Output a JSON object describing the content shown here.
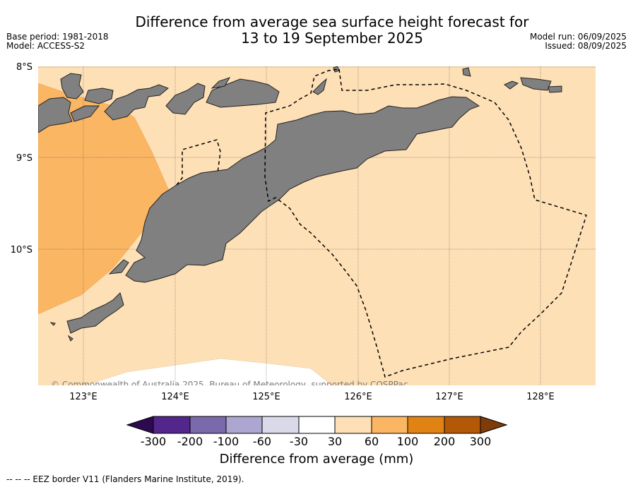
{
  "header": {
    "title_line1": "Difference from average sea surface height forecast for",
    "title_line2": "13 to 19 September 2025",
    "base_period": "Base period: 1981-2018",
    "model": "Model: ACCESS-S2",
    "model_run": "Model run: 06/09/2025",
    "issued": "Issued: 08/09/2025"
  },
  "map": {
    "region_lon": [
      122.5,
      128.6
    ],
    "region_lat": [
      -8.0,
      -11.5
    ],
    "lat_labels": [
      "8°S",
      "9°S",
      "10°S"
    ],
    "lon_labels": [
      "123°E",
      "124°E",
      "125°E",
      "126°E",
      "127°E",
      "128°E"
    ],
    "land_color": "#808080",
    "copyright": "© Commonwealth of Australia 2025, Bureau of Meteorology, supported by COSPPac",
    "fill_categories": {
      "background": "30 to 60 mm",
      "west_patch": "60 to 100 mm",
      "south_patch": "-30 to 30 mm"
    }
  },
  "colorbar": {
    "title": "Difference from average (mm)",
    "ticks": [
      "-300",
      "-200",
      "-100",
      "-60",
      "-30",
      "30",
      "60",
      "100",
      "200",
      "300"
    ],
    "colors": [
      "#2d0a50",
      "#52268a",
      "#7b6aab",
      "#aca6d0",
      "#d9d9ea",
      "#ffffff",
      "#fee0b6",
      "#fbb663",
      "#e08214",
      "#b35806",
      "#7f3b08"
    ]
  },
  "footnote": "--  --  -- EEZ border V11 (Flanders Marine Institute, 2019)."
}
